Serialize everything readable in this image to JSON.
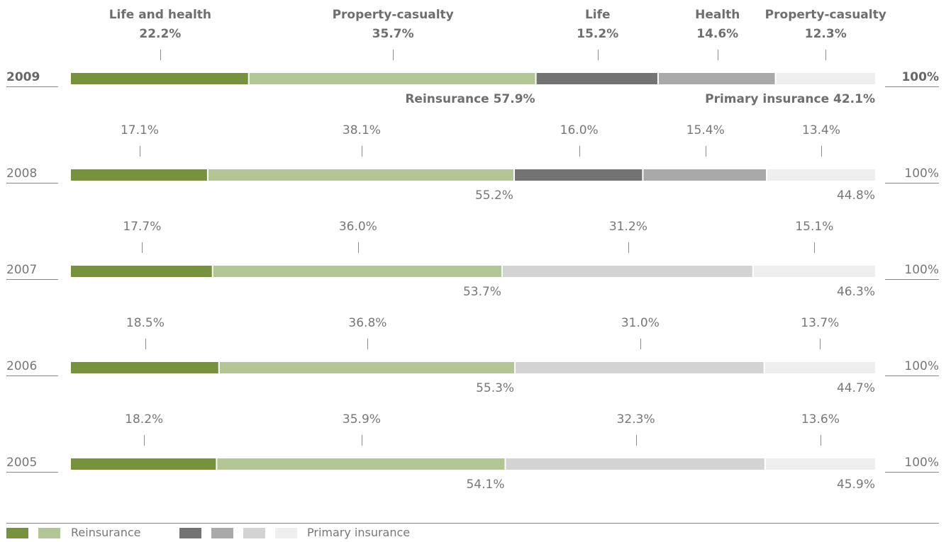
{
  "chart_data": {
    "type": "bar",
    "orientation": "horizontal",
    "stacked": true,
    "title": "",
    "xlabel": "",
    "ylabel": "",
    "xlim": [
      0,
      100
    ],
    "categories": [
      "2009",
      "2008",
      "2007",
      "2006",
      "2005"
    ],
    "totals": [
      "100%",
      "100%",
      "100%",
      "100%",
      "100%"
    ],
    "series": [
      {
        "name": "Life and health",
        "group": "reinsurance",
        "color": "#76923c",
        "values": [
          22.2,
          17.1,
          17.7,
          18.5,
          18.2
        ]
      },
      {
        "name": "Property-casualty",
        "group": "reinsurance",
        "color": "#b2c594",
        "values": [
          35.7,
          38.1,
          36.0,
          36.8,
          35.9
        ]
      },
      {
        "name": "Life",
        "group": "primary",
        "color": "#737373",
        "values": [
          15.2,
          16.0,
          null,
          null,
          null
        ]
      },
      {
        "name": "Health",
        "group": "primary",
        "color": "#a9a9a9",
        "values": [
          14.6,
          15.4,
          null,
          null,
          null
        ]
      },
      {
        "name": "",
        "group": "primary",
        "color": "#d3d3d3",
        "values": [
          null,
          null,
          31.2,
          31.0,
          32.3
        ]
      },
      {
        "name": "Property-casualty",
        "group": "primary",
        "color": "#efefef",
        "values": [
          12.3,
          13.4,
          15.1,
          13.7,
          13.6
        ]
      }
    ],
    "group_totals": {
      "reinsurance": [
        57.9,
        55.2,
        53.7,
        55.3,
        54.1
      ],
      "primary": [
        42.1,
        44.8,
        46.3,
        44.7,
        45.9
      ]
    },
    "group_labels_2009": {
      "reinsurance": "Reinsurance 57.9%",
      "primary": "Primary insurance 42.1%"
    },
    "legend": {
      "placement": "bottom",
      "reinsurance_label": "Reinsurance",
      "primary_label": "Primary insurance",
      "reinsurance_colors": [
        "#76923c",
        "#b2c594"
      ],
      "primary_colors": [
        "#737373",
        "#a9a9a9",
        "#d3d3d3",
        "#efefef"
      ]
    }
  }
}
